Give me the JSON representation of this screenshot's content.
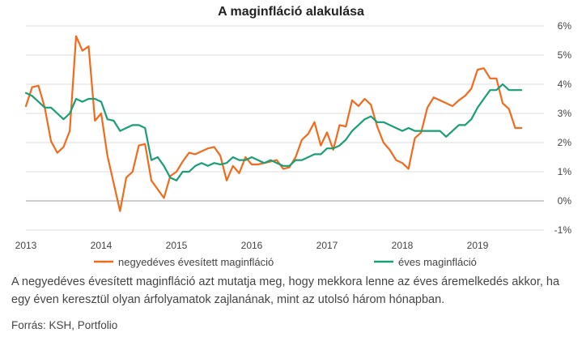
{
  "title": "A maginfláció alakulása",
  "note": "A negyedéves évesített maginfláció azt mutatja meg, hogy mekkora lenne az éves áremelkedés akkor, ha egy éven keresztül olyan árfolyamatok zajlanának, mint az utolsó három hónapban.",
  "source": "Forrás: KSH, Portfolio",
  "chart_data": {
    "type": "line",
    "title": "A maginfláció alakulása",
    "xlabel": "",
    "ylabel": "",
    "x_ticks": [
      "2013",
      "2014",
      "2015",
      "2016",
      "2017",
      "2018",
      "2019"
    ],
    "y_ticks": [
      "-1%",
      "0%",
      "1%",
      "2%",
      "3%",
      "4%",
      "5%",
      "6%"
    ],
    "xlim": [
      2013.0,
      2019.75
    ],
    "ylim": [
      -1,
      6
    ],
    "grid": "horizontal",
    "legend_position": "bottom",
    "series": [
      {
        "name": "negyedéves évesített maginfláció",
        "color": "#f26a1b",
        "x": [
          2013.0,
          2013.083,
          2013.167,
          2013.25,
          2013.333,
          2013.417,
          2013.5,
          2013.583,
          2013.667,
          2013.75,
          2013.833,
          2013.917,
          2014.0,
          2014.083,
          2014.167,
          2014.25,
          2014.333,
          2014.417,
          2014.5,
          2014.583,
          2014.667,
          2014.75,
          2014.833,
          2014.917,
          2015.0,
          2015.083,
          2015.167,
          2015.25,
          2015.333,
          2015.417,
          2015.5,
          2015.583,
          2015.667,
          2015.75,
          2015.833,
          2015.917,
          2016.0,
          2016.083,
          2016.167,
          2016.25,
          2016.333,
          2016.417,
          2016.5,
          2016.583,
          2016.667,
          2016.75,
          2016.833,
          2016.917,
          2017.0,
          2017.083,
          2017.167,
          2017.25,
          2017.333,
          2017.417,
          2017.5,
          2017.583,
          2017.667,
          2017.75,
          2017.833,
          2017.917,
          2018.0,
          2018.083,
          2018.167,
          2018.25,
          2018.333,
          2018.417,
          2018.5,
          2018.583,
          2018.667,
          2018.75,
          2018.833,
          2018.917,
          2019.0,
          2019.083,
          2019.167,
          2019.25,
          2019.333,
          2019.417,
          2019.5,
          2019.583
        ],
        "values": [
          3.25,
          3.9,
          3.95,
          3.2,
          2.05,
          1.65,
          1.85,
          2.4,
          5.65,
          5.15,
          5.3,
          2.75,
          3.0,
          1.55,
          0.6,
          -0.35,
          0.8,
          1.0,
          1.9,
          1.95,
          0.7,
          0.4,
          0.1,
          0.85,
          1.0,
          1.35,
          1.65,
          1.6,
          1.7,
          1.8,
          1.85,
          1.55,
          0.7,
          1.2,
          0.95,
          1.5,
          1.25,
          1.25,
          1.3,
          1.35,
          1.4,
          1.1,
          1.15,
          1.5,
          2.1,
          2.3,
          2.7,
          1.9,
          2.35,
          1.75,
          2.6,
          2.55,
          3.45,
          3.25,
          3.5,
          3.3,
          2.55,
          2.0,
          1.75,
          1.4,
          1.3,
          1.1,
          2.15,
          2.35,
          3.2,
          3.55,
          3.45,
          3.35,
          3.25,
          3.45,
          3.6,
          3.85,
          4.5,
          4.55,
          4.2,
          4.2,
          3.35,
          3.15,
          2.5,
          2.5
        ]
      },
      {
        "name": "éves maginfláció",
        "color": "#1a9e77",
        "x": [
          2013.0,
          2013.083,
          2013.167,
          2013.25,
          2013.333,
          2013.417,
          2013.5,
          2013.583,
          2013.667,
          2013.75,
          2013.833,
          2013.917,
          2014.0,
          2014.083,
          2014.167,
          2014.25,
          2014.333,
          2014.417,
          2014.5,
          2014.583,
          2014.667,
          2014.75,
          2014.833,
          2014.917,
          2015.0,
          2015.083,
          2015.167,
          2015.25,
          2015.333,
          2015.417,
          2015.5,
          2015.583,
          2015.667,
          2015.75,
          2015.833,
          2015.917,
          2016.0,
          2016.083,
          2016.167,
          2016.25,
          2016.333,
          2016.417,
          2016.5,
          2016.583,
          2016.667,
          2016.75,
          2016.833,
          2016.917,
          2017.0,
          2017.083,
          2017.167,
          2017.25,
          2017.333,
          2017.417,
          2017.5,
          2017.583,
          2017.667,
          2017.75,
          2017.833,
          2017.917,
          2018.0,
          2018.083,
          2018.167,
          2018.25,
          2018.333,
          2018.417,
          2018.5,
          2018.583,
          2018.667,
          2018.75,
          2018.833,
          2018.917,
          2019.0,
          2019.083,
          2019.167,
          2019.25,
          2019.333,
          2019.417,
          2019.5,
          2019.583
        ],
        "values": [
          3.7,
          3.6,
          3.4,
          3.2,
          3.2,
          3.0,
          2.8,
          3.0,
          3.5,
          3.4,
          3.5,
          3.5,
          3.4,
          2.8,
          2.75,
          2.4,
          2.5,
          2.6,
          2.6,
          2.5,
          1.4,
          1.5,
          1.2,
          0.8,
          0.7,
          1.0,
          1.0,
          1.2,
          1.3,
          1.2,
          1.3,
          1.25,
          1.3,
          1.5,
          1.4,
          1.4,
          1.5,
          1.4,
          1.3,
          1.4,
          1.3,
          1.2,
          1.2,
          1.4,
          1.4,
          1.5,
          1.6,
          1.6,
          1.8,
          1.8,
          1.9,
          2.1,
          2.4,
          2.6,
          2.8,
          2.9,
          2.7,
          2.7,
          2.6,
          2.5,
          2.4,
          2.5,
          2.4,
          2.4,
          2.4,
          2.4,
          2.4,
          2.2,
          2.4,
          2.6,
          2.6,
          2.8,
          3.2,
          3.5,
          3.8,
          3.8,
          4.0,
          3.8,
          3.8,
          3.8
        ]
      }
    ]
  }
}
